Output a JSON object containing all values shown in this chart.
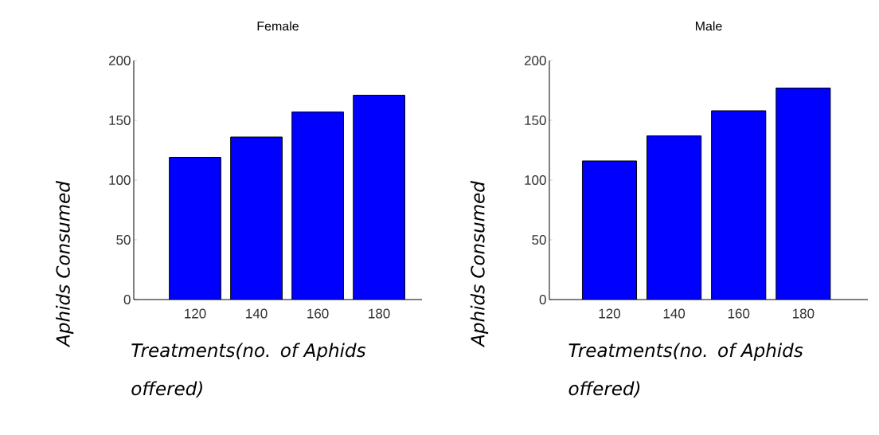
{
  "chart_data": [
    {
      "type": "bar",
      "title": "Female",
      "xlabel": "Treatments(no. of Aphids offered)",
      "ylabel": "Aphids Consumed",
      "categories": [
        "120",
        "140",
        "160",
        "180"
      ],
      "values": [
        119,
        136,
        157,
        171
      ],
      "color": "#0000ff",
      "ylim": [
        0,
        200
      ],
      "yticks": [
        0,
        50,
        100,
        150,
        200
      ]
    },
    {
      "type": "bar",
      "title": "Male",
      "xlabel": "Treatments(no. of Aphids offered)",
      "ylabel": "Aphids Consumed",
      "categories": [
        "120",
        "140",
        "160",
        "180"
      ],
      "values": [
        116,
        137,
        158,
        177
      ],
      "color": "#0000ff",
      "ylim": [
        0,
        200
      ],
      "yticks": [
        0,
        50,
        100,
        150,
        200
      ]
    }
  ]
}
